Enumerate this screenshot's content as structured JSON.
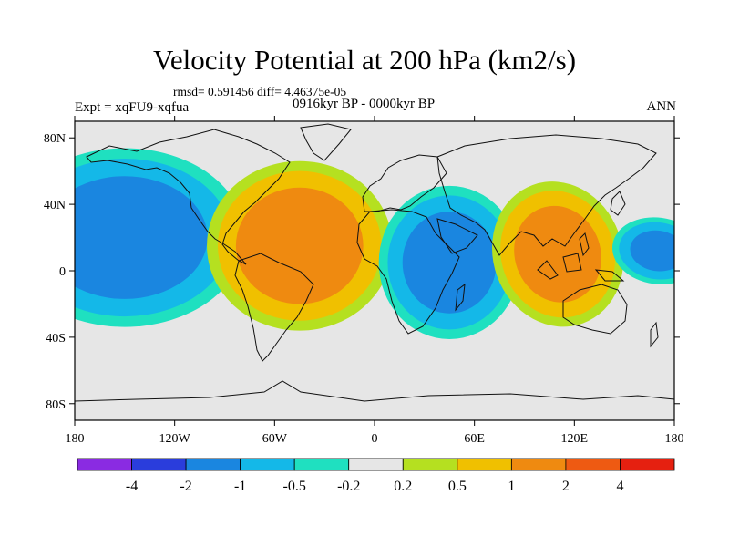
{
  "chart_data": {
    "type": "contour-map",
    "title": "Velocity Potential at 200 hPa (km2/s)",
    "stats_line": "rmsd= 0.591456 diff= 4.46375e-05",
    "left_label": "Expt = xqFU9-xqfua",
    "center_label": "0916kyr BP - 0000kyr BP",
    "right_label": "ANN",
    "lon_range": [
      -180,
      180
    ],
    "lat_range": [
      -90,
      90
    ],
    "x_ticks": [
      {
        "value": -180,
        "label": "180"
      },
      {
        "value": -120,
        "label": "120W"
      },
      {
        "value": -60,
        "label": "60W"
      },
      {
        "value": 0,
        "label": "0"
      },
      {
        "value": 60,
        "label": "60E"
      },
      {
        "value": 120,
        "label": "120E"
      },
      {
        "value": 180,
        "label": "180"
      }
    ],
    "y_ticks": [
      {
        "value": 80,
        "label": "80N"
      },
      {
        "value": 40,
        "label": "40N"
      },
      {
        "value": 0,
        "label": "0"
      },
      {
        "value": -40,
        "label": "40S"
      },
      {
        "value": -80,
        "label": "80S"
      }
    ],
    "levels": [
      -4,
      -2,
      -1,
      -0.5,
      -0.2,
      0.2,
      0.5,
      1,
      2,
      4
    ],
    "level_labels": [
      "-4",
      "-2",
      "-1",
      "-0.5",
      "-0.2",
      "0.2",
      "0.5",
      "1",
      "2",
      "4"
    ],
    "colors": [
      "#8a2be2",
      "#2a3ddc",
      "#1a86e0",
      "#14b8e8",
      "#1fe0c0",
      "#e6e6e6",
      "#b5e020",
      "#f0c000",
      "#ef8a10",
      "#ee5a12",
      "#e52010"
    ],
    "features": [
      {
        "name": "pacific-negative-cell",
        "lon": -150,
        "lat": 20,
        "peak": -1.6
      },
      {
        "name": "america-atlantic-positive-cell",
        "lon": -45,
        "lat": 15,
        "peak": 1.6
      },
      {
        "name": "africa-indian-negative-cell",
        "lon": 45,
        "lat": 5,
        "peak": -1.5
      },
      {
        "name": "asia-maritime-positive-cell",
        "lon": 110,
        "lat": 10,
        "peak": 1.5
      },
      {
        "name": "west-pacific-negative-cell",
        "lon": 170,
        "lat": 12,
        "peak": -1.3
      }
    ]
  }
}
